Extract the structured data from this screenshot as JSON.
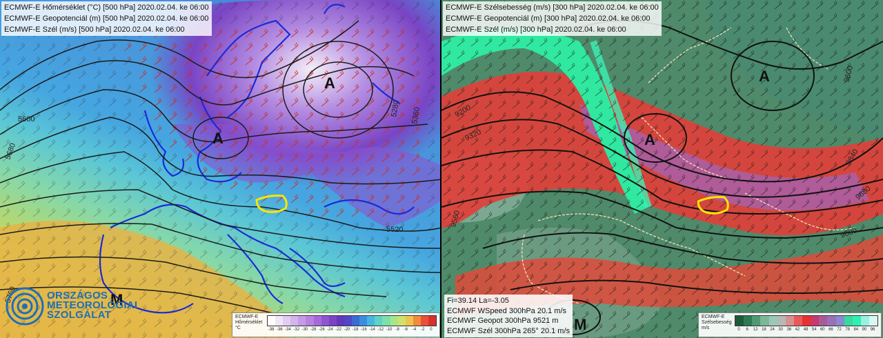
{
  "left_panel": {
    "titles": [
      "ECMWF-E Hőmérséklet (°C) [500 hPa] 2020.02.04. ke 06:00",
      "ECMWF-E Geopotenciál (m) [500 hPa] 2020.02.04. ke 06:00",
      "ECMWF-E Szél (m/s) [500 hPa] 2020.02.04. ke 06:00"
    ],
    "pressure_centers": [
      "A",
      "A",
      "M"
    ],
    "isohypse_labels": [
      "5600",
      "5680",
      "5520",
      "5280",
      "5360",
      "5760"
    ],
    "legend": {
      "title_lines": [
        "ECMWF-E",
        "Hőmérséklet",
        "°C"
      ],
      "ticks": [
        "-38",
        "-36",
        "-34",
        "-32",
        "-30",
        "-28",
        "-26",
        "-24",
        "-22",
        "-20",
        "-18",
        "-16",
        "-14",
        "-12",
        "-10",
        "-8",
        "-6",
        "-4",
        "-2",
        "0"
      ],
      "colors": [
        "#ffffff",
        "#f0e6f8",
        "#e2cdf2",
        "#d4b4ec",
        "#c69be6",
        "#b882e0",
        "#a56ad8",
        "#8f55cf",
        "#7a44c4",
        "#6438b8",
        "#4f48c8",
        "#3d6ad4",
        "#3a8ee0",
        "#46b6e0",
        "#5cd2c8",
        "#7ee0a8",
        "#a6e68a",
        "#d2e06c",
        "#ecc452",
        "#f08c3c",
        "#e8503a",
        "#d8302e"
      ]
    },
    "logo_lines": [
      "ORSZÁGOS",
      "METEOROLÓGIAI",
      "SZOLGÁLAT"
    ]
  },
  "right_panel": {
    "titles": [
      "ECMWF-E Szélsebesség (m/s) [300 hPa] 2020.02.04. ke 06:00",
      "ECMWF-E Geopotenciál (m) [300 hPa] 2020.02.04. ke 06:00",
      "ECMWF-E Szél (m/s) [300 hPa] 2020.02.04. ke 06:00"
    ],
    "pressure_centers": [
      "A",
      "A",
      "M"
    ],
    "isohypse_labels": [
      "9200",
      "9320",
      "9600",
      "9840",
      "9680",
      "9080",
      "9560"
    ],
    "info_lines": [
      "Fi=39.14  La=-3.05",
      "ECMWF WSpeed 300hPa    20.1 m/s",
      "ECMWF Geopot 300hPa    9521 m",
      "ECMWF Szél 300hPa  265° 20.1 m/s"
    ],
    "legend": {
      "title_lines": [
        "ECMWF-E",
        "Szélsebesség",
        "m/s"
      ],
      "ticks": [
        "0",
        "6",
        "12",
        "18",
        "24",
        "30",
        "36",
        "42",
        "48",
        "54",
        "60",
        "66",
        "72",
        "78",
        "84",
        "90",
        "96"
      ],
      "colors": [
        "#1e5a3a",
        "#2f7a52",
        "#4f9a72",
        "#7cb898",
        "#9cc8b8",
        "#b8b8b8",
        "#d89090",
        "#e85a5a",
        "#e83030",
        "#c83a6a",
        "#a85a9a",
        "#9a70b8",
        "#8a8ad0",
        "#3ad8a0",
        "#30f0b0",
        "#9af0e0",
        "#d8f8f0"
      ]
    }
  },
  "colors": {
    "left_cold": "#7a44c4",
    "left_warm": "#d8b040",
    "right_jet": "#e83030",
    "right_calm": "#3a7a5a",
    "highlight_outline": "#ffe600"
  }
}
